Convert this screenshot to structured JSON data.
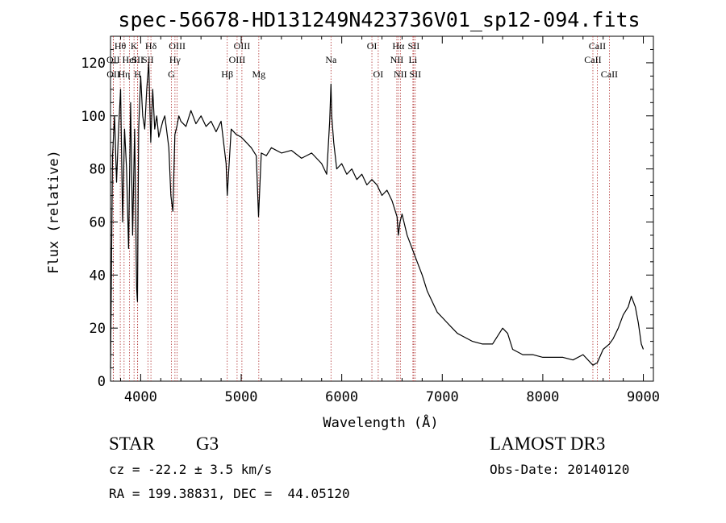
{
  "chart_data": {
    "type": "line",
    "title": "spec-56678-HD131249N423736V01_sp12-094.fits",
    "xlabel": "Wavelength (Å)",
    "ylabel": "Flux (relative)",
    "xlim": [
      3700,
      9100
    ],
    "ylim": [
      0,
      130
    ],
    "xticks": [
      4000,
      5000,
      6000,
      7000,
      8000,
      9000
    ],
    "xtick_labels": [
      "4000",
      "5000",
      "6000",
      "7000",
      "8000",
      "9000"
    ],
    "yticks": [
      0,
      20,
      40,
      60,
      80,
      100,
      120
    ],
    "ytick_labels": [
      "0",
      "20",
      "40",
      "60",
      "80",
      "100",
      "120"
    ],
    "series": [
      {
        "name": "flux",
        "x": [
          3700,
          3720,
          3740,
          3760,
          3780,
          3800,
          3820,
          3840,
          3860,
          3880,
          3900,
          3920,
          3940,
          3960,
          3968,
          3980,
          4000,
          4020,
          4040,
          4060,
          4080,
          4100,
          4120,
          4140,
          4160,
          4180,
          4200,
          4220,
          4240,
          4260,
          4280,
          4300,
          4320,
          4340,
          4360,
          4380,
          4400,
          4450,
          4500,
          4550,
          4600,
          4650,
          4700,
          4750,
          4800,
          4850,
          4861,
          4900,
          4950,
          5000,
          5050,
          5100,
          5150,
          5172,
          5200,
          5250,
          5300,
          5400,
          5500,
          5600,
          5700,
          5800,
          5850,
          5880,
          5893,
          5900,
          5920,
          5950,
          6000,
          6050,
          6100,
          6150,
          6200,
          6250,
          6300,
          6350,
          6400,
          6450,
          6500,
          6550,
          6563,
          6580,
          6600,
          6650,
          6700,
          6750,
          6800,
          6850,
          6900,
          6950,
          7000,
          7050,
          7100,
          7150,
          7200,
          7300,
          7400,
          7500,
          7600,
          7650,
          7700,
          7800,
          7900,
          8000,
          8100,
          8200,
          8300,
          8400,
          8498,
          8542,
          8600,
          8662,
          8700,
          8750,
          8800,
          8850,
          8880,
          8920,
          8950,
          8980,
          9000
        ],
        "y": [
          5,
          85,
          100,
          75,
          95,
          110,
          60,
          95,
          80,
          50,
          105,
          55,
          95,
          35,
          30,
          95,
          115,
          100,
          95,
          110,
          120,
          90,
          110,
          95,
          100,
          92,
          95,
          98,
          100,
          94,
          88,
          70,
          64,
          93,
          96,
          100,
          98,
          96,
          102,
          97,
          100,
          96,
          98,
          94,
          98,
          82,
          70,
          95,
          93,
          92,
          90,
          88,
          85,
          62,
          86,
          85,
          88,
          86,
          87,
          84,
          86,
          82,
          78,
          98,
          112,
          100,
          90,
          80,
          82,
          78,
          80,
          76,
          78,
          74,
          76,
          74,
          70,
          72,
          68,
          62,
          55,
          60,
          63,
          55,
          50,
          45,
          40,
          34,
          30,
          26,
          24,
          22,
          20,
          18,
          17,
          15,
          14,
          14,
          20,
          18,
          12,
          10,
          10,
          9,
          9,
          9,
          8,
          10,
          6,
          7,
          12,
          14,
          16,
          20,
          25,
          28,
          32,
          28,
          22,
          14,
          12
        ]
      }
    ],
    "lines": [
      {
        "label": "OII",
        "x": 3727,
        "row": 2
      },
      {
        "label": "OII",
        "x": 3729,
        "row": 4
      },
      {
        "label": "Hθ",
        "x": 3797,
        "row": 1
      },
      {
        "label": "Hη",
        "x": 3835,
        "row": 4
      },
      {
        "label": "HeI",
        "x": 3889,
        "row": 2
      },
      {
        "label": "K",
        "x": 3934,
        "row": 1
      },
      {
        "label": "SII",
        "x": 3970,
        "row": 2
      },
      {
        "label": "H",
        "x": 3969,
        "row": 4
      },
      {
        "label": "Hδ",
        "x": 4102,
        "row": 1
      },
      {
        "label": "SII",
        "x": 4072,
        "row": 2
      },
      {
        "label": "OIII",
        "x": 4363,
        "row": 1
      },
      {
        "label": "Hγ",
        "x": 4341,
        "row": 3
      },
      {
        "label": "G",
        "x": 4305,
        "row": 4
      },
      {
        "label": "Hβ",
        "x": 4861,
        "row": 4
      },
      {
        "label": "OIII",
        "x": 4959,
        "row": 2
      },
      {
        "label": "OIII",
        "x": 5007,
        "row": 1
      },
      {
        "label": "Mg",
        "x": 5175,
        "row": 4
      },
      {
        "label": "Na",
        "x": 5893,
        "row": 2
      },
      {
        "label": "OI",
        "x": 6300,
        "row": 1
      },
      {
        "label": "OI",
        "x": 6363,
        "row": 4
      },
      {
        "label": "NII",
        "x": 6548,
        "row": 2
      },
      {
        "label": "Hα",
        "x": 6563,
        "row": 1
      },
      {
        "label": "NII",
        "x": 6583,
        "row": 4
      },
      {
        "label": "SII",
        "x": 6716,
        "row": 1
      },
      {
        "label": "Li",
        "x": 6708,
        "row": 2
      },
      {
        "label": "SII",
        "x": 6731,
        "row": 4
      },
      {
        "label": "CaII",
        "x": 8498,
        "row": 2
      },
      {
        "label": "CaII",
        "x": 8542,
        "row": 1
      },
      {
        "label": "CaII",
        "x": 8662,
        "row": 4
      }
    ]
  },
  "info": {
    "object_class": "STAR",
    "subclass": "G3",
    "survey": "LAMOST DR3",
    "velocity": "cz = -22.2 ± 3.5 km/s",
    "obs_date": "Obs-Date: 20140120",
    "coords": "RA = 199.38831, DEC =  44.05120"
  }
}
